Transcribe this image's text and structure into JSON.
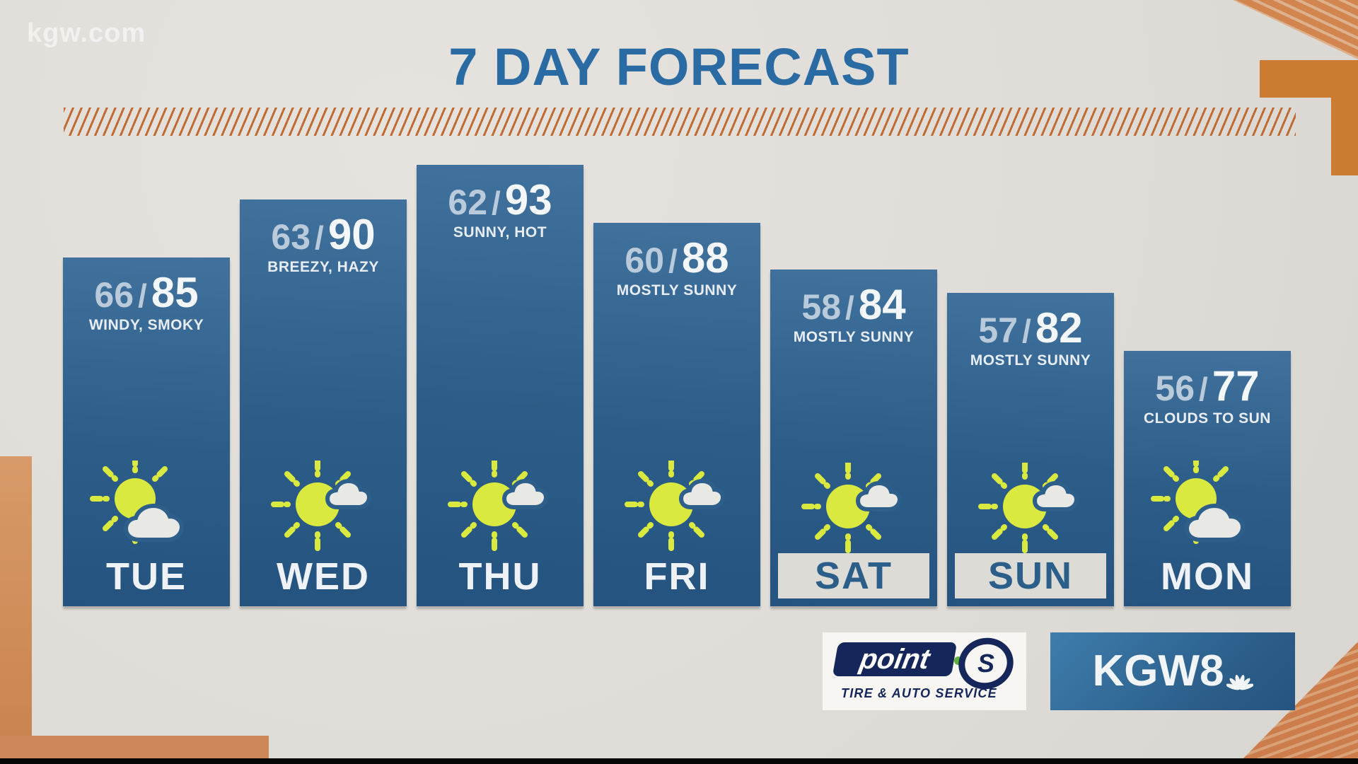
{
  "watermark": "kgw.com",
  "header": {
    "title": "7 DAY FORECAST"
  },
  "temp_separator": "/",
  "days": [
    {
      "label": "TUE",
      "low": 66,
      "high": 85,
      "condition": "WINDY, SMOKY",
      "icon": "partly-cloudy",
      "weekend": false
    },
    {
      "label": "WED",
      "low": 63,
      "high": 90,
      "condition": "BREEZY, HAZY",
      "icon": "mostly-sunny",
      "weekend": false
    },
    {
      "label": "THU",
      "low": 62,
      "high": 93,
      "condition": "SUNNY, HOT",
      "icon": "mostly-sunny",
      "weekend": false
    },
    {
      "label": "FRI",
      "low": 60,
      "high": 88,
      "condition": "MOSTLY SUNNY",
      "icon": "mostly-sunny",
      "weekend": false
    },
    {
      "label": "SAT",
      "low": 58,
      "high": 84,
      "condition": "MOSTLY SUNNY",
      "icon": "mostly-sunny",
      "weekend": true
    },
    {
      "label": "SUN",
      "low": 57,
      "high": 82,
      "condition": "MOSTLY SUNNY",
      "icon": "mostly-sunny",
      "weekend": true
    },
    {
      "label": "MON",
      "low": 56,
      "high": 77,
      "condition": "CLOUDS TO SUN",
      "icon": "partly-cloudy",
      "weekend": false
    }
  ],
  "chart_data": {
    "type": "bar",
    "title": "7 DAY FORECAST",
    "categories": [
      "TUE",
      "WED",
      "THU",
      "FRI",
      "SAT",
      "SUN",
      "MON"
    ],
    "series": [
      {
        "name": "low",
        "values": [
          66,
          63,
          62,
          60,
          58,
          57,
          56
        ]
      },
      {
        "name": "high",
        "values": [
          85,
          90,
          93,
          88,
          84,
          82,
          77
        ]
      }
    ],
    "annotations": [
      "WINDY, SMOKY",
      "BREEZY, HAZY",
      "SUNNY, HOT",
      "MOSTLY SUNNY",
      "MOSTLY SUNNY",
      "MOSTLY SUNNY",
      "CLOUDS TO SUN"
    ],
    "icons": [
      "partly-cloudy",
      "mostly-sunny",
      "mostly-sunny",
      "mostly-sunny",
      "mostly-sunny",
      "mostly-sunny",
      "partly-cloudy"
    ],
    "layout_hints": {
      "bar_height_encodes": "high",
      "weekend_highlight": [
        "SAT",
        "SUN"
      ],
      "grid": false,
      "legend": false
    }
  },
  "sponsor": {
    "brand": "point",
    "brand_mark": "S",
    "tagline": "TIRE & AUTO SERVICE"
  },
  "station": {
    "call_letters": "KGW8"
  },
  "colors": {
    "title_blue": "#2a6ba3",
    "bar_blue_top": "#41719d",
    "bar_blue_bottom": "#255380",
    "low_temp": "#b9cbda",
    "high_temp": "#f3f7fa",
    "weekend_box": "#dcdbd6",
    "weekend_text": "#2b5e89",
    "sun_yellow": "#d9e93f",
    "cloud_gray": "#e8e8e4",
    "accent_orange": "#cc7c31",
    "hatch_orange": "#c06b34"
  }
}
